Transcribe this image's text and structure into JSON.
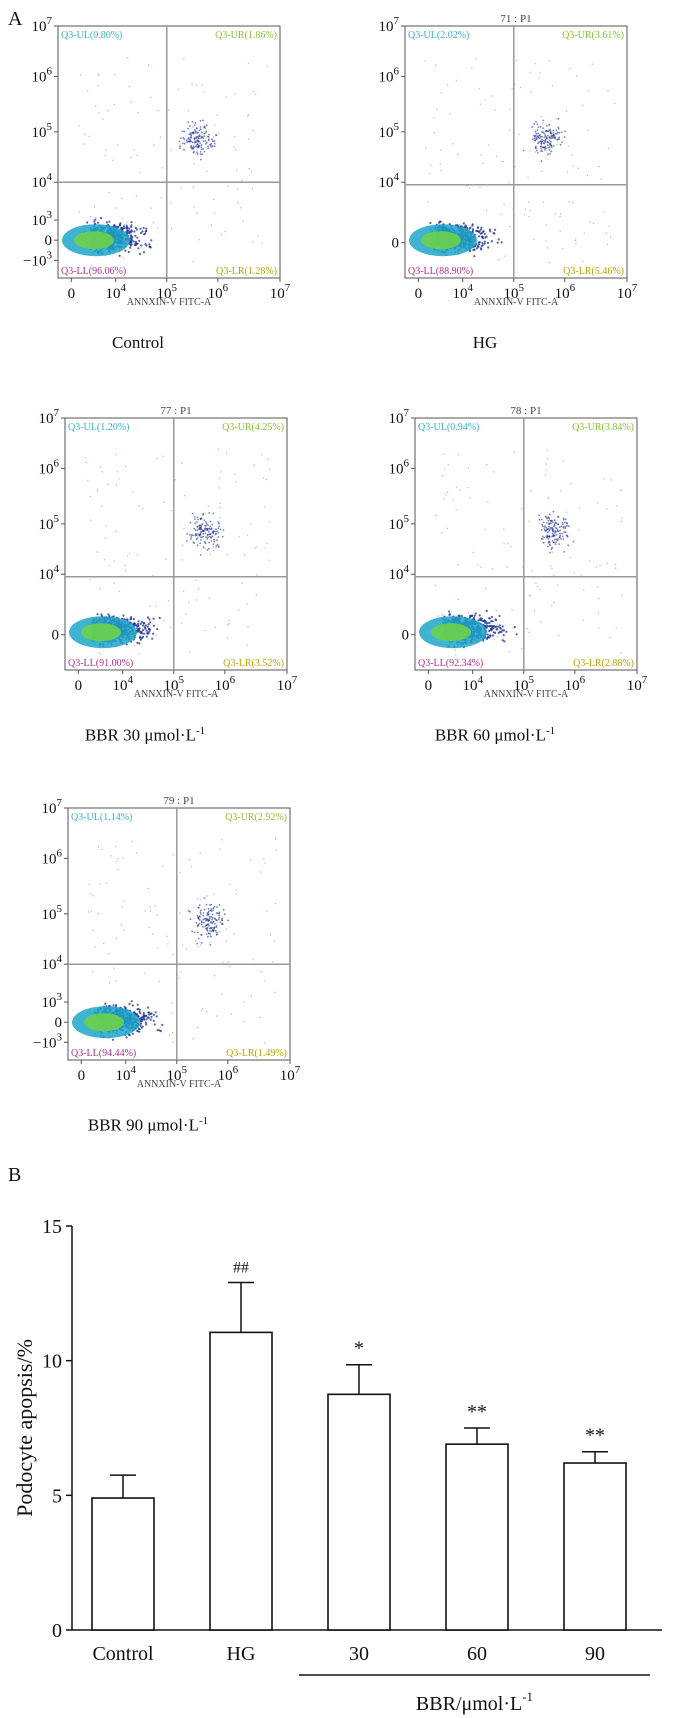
{
  "panels": {
    "a": "A",
    "b": "B"
  },
  "flow_plots": [
    {
      "title": "",
      "caption": "Control",
      "caption_sup": "",
      "quadrants": {
        "UL": "Q3-UL(0.80%)",
        "UR": "Q3-UR(1.86%)",
        "LL": "Q3-LL(96.06%)",
        "LR": "Q3-LR(1.28%)"
      },
      "ylabels": [
        "10^7",
        "10^6",
        "10^5",
        "10^4",
        "10^3",
        "0",
        "-10^3"
      ]
    },
    {
      "title": "71 : P1",
      "caption": "HG",
      "caption_sup": "",
      "quadrants": {
        "UL": "Q3-UL(2.02%)",
        "UR": "Q3-UR(3.61%)",
        "LL": "Q3-LL(88.90%)",
        "LR": "Q3-LR(5.46%)"
      },
      "ylabels": [
        "10^7",
        "10^6",
        "10^5",
        "10^4",
        "0"
      ]
    },
    {
      "title": "77 : P1",
      "caption": "BBR 30 μmol·L",
      "caption_sup": "-1",
      "quadrants": {
        "UL": "Q3-UL(1.20%)",
        "UR": "Q3-UR(4.25%)",
        "LL": "Q3-LL(91.00%)",
        "LR": "Q3-LR(3.52%)"
      },
      "ylabels": [
        "10^7",
        "10^6",
        "10^5",
        "10^4",
        "0"
      ]
    },
    {
      "title": "78 : P1",
      "caption": "BBR 60 μmol·L",
      "caption_sup": "-1",
      "quadrants": {
        "UL": "Q3-UL(0.94%)",
        "UR": "Q3-UR(3.84%)",
        "LL": "Q3-LL(92.34%)",
        "LR": "Q3-LR(2.88%)"
      },
      "ylabels": [
        "10^7",
        "10^6",
        "10^5",
        "10^4",
        "0"
      ]
    },
    {
      "title": "79 : P1",
      "caption": "BBR 90 μmol·L",
      "caption_sup": "-1",
      "quadrants": {
        "UL": "Q3-UL(1.14%)",
        "UR": "Q3-UR(2.92%)",
        "LL": "Q3-LL(94.44%)",
        "LR": "Q3-LR(1.49%)"
      },
      "ylabels": [
        "10^7",
        "10^6",
        "10^5",
        "10^4",
        "10^3",
        "0",
        "-10^3"
      ]
    }
  ],
  "flow_axes": {
    "xlabel": "ANNXIN-V FITC-A",
    "xticks": [
      "0",
      "10^4",
      "10^5",
      "10^6",
      "10^7"
    ]
  },
  "chart_data": {
    "type": "bar",
    "title": "",
    "categories": [
      "Control",
      "HG",
      "30",
      "60",
      "90"
    ],
    "values": [
      4.9,
      11.05,
      8.75,
      6.9,
      6.2
    ],
    "errors": [
      0.85,
      1.85,
      1.1,
      0.6,
      0.42
    ],
    "annotations": [
      "",
      "##",
      "*",
      "**",
      "**"
    ],
    "ylabel": "Podocyte apopsis/%",
    "xlabel": "",
    "group_label": "BBR/μmol·L",
    "group_label_sup": "-1",
    "ylim": [
      0,
      15
    ],
    "yticks": [
      0,
      5,
      10,
      15
    ]
  },
  "colors": {
    "axis": "#111111",
    "grid": "#9a9a9a",
    "ul": "#3aaed0",
    "ur": "#86c232",
    "ll": "#b0308a",
    "lr": "#b9a400",
    "dots": "#1a2d8f"
  }
}
